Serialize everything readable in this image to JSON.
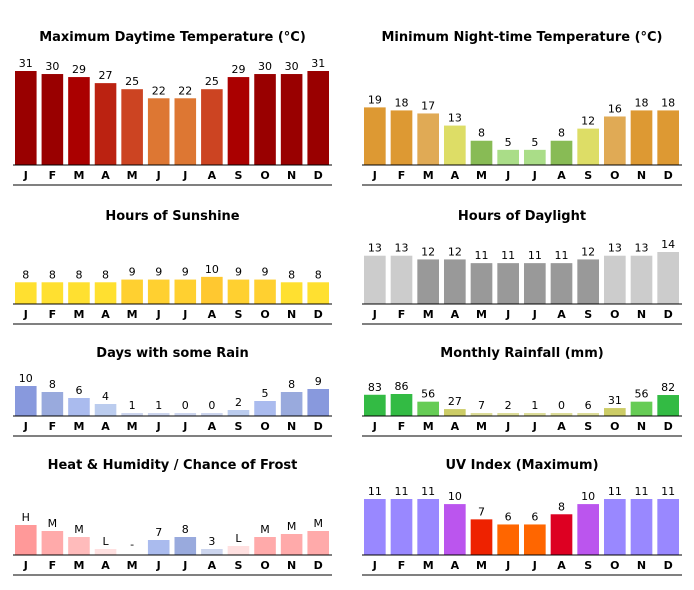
{
  "chart_data": [
    {
      "type": "bar",
      "title": "Maximum Daytime Temperature (°C)",
      "categories": [
        "J",
        "F",
        "M",
        "A",
        "M",
        "J",
        "J",
        "A",
        "S",
        "O",
        "N",
        "D"
      ],
      "values": [
        31,
        30,
        29,
        27,
        25,
        22,
        22,
        25,
        29,
        30,
        30,
        31
      ],
      "labels": [
        "31",
        "30",
        "29",
        "27",
        "25",
        "22",
        "22",
        "25",
        "29",
        "30",
        "30",
        "31"
      ],
      "colors": [
        "#990000",
        "#990000",
        "#AA0000",
        "#BB2211",
        "#CC4422",
        "#DD7733",
        "#DD7733",
        "#CC4422",
        "#AA0000",
        "#990000",
        "#990000",
        "#990000"
      ],
      "ylim": [
        0,
        31
      ]
    },
    {
      "type": "bar",
      "title": "Minimum Night-time Temperature (°C)",
      "categories": [
        "J",
        "F",
        "M",
        "A",
        "M",
        "J",
        "J",
        "A",
        "S",
        "O",
        "N",
        "D"
      ],
      "values": [
        19,
        18,
        17,
        13,
        8,
        5,
        5,
        8,
        12,
        16,
        18,
        18
      ],
      "labels": [
        "19",
        "18",
        "17",
        "13",
        "8",
        "5",
        "5",
        "8",
        "12",
        "16",
        "18",
        "18"
      ],
      "colors": [
        "#DD9933",
        "#DD9933",
        "#E0AA55",
        "#DDDD66",
        "#88BB55",
        "#AADD88",
        "#AADD88",
        "#88BB55",
        "#DDDD66",
        "#E0AA55",
        "#DD9933",
        "#DD9933"
      ],
      "ylim": [
        0,
        31
      ]
    },
    {
      "type": "bar",
      "title": "Hours of Sunshine",
      "categories": [
        "J",
        "F",
        "M",
        "A",
        "M",
        "J",
        "J",
        "A",
        "S",
        "O",
        "N",
        "D"
      ],
      "values": [
        8,
        8,
        8,
        8,
        9,
        9,
        9,
        10,
        9,
        9,
        8,
        8
      ],
      "labels": [
        "8",
        "8",
        "8",
        "8",
        "9",
        "9",
        "9",
        "10",
        "9",
        "9",
        "8",
        "8"
      ],
      "colors": [
        "#FFE030",
        "#FFE030",
        "#FFE030",
        "#FFE030",
        "#FFD030",
        "#FFD030",
        "#FFD030",
        "#FFC830",
        "#FFD030",
        "#FFD030",
        "#FFE030",
        "#FFE030"
      ],
      "ylim": [
        0,
        14
      ]
    },
    {
      "type": "bar",
      "title": "Hours of Daylight",
      "categories": [
        "J",
        "F",
        "M",
        "A",
        "M",
        "J",
        "J",
        "A",
        "S",
        "O",
        "N",
        "D"
      ],
      "values": [
        13,
        13,
        12,
        12,
        11,
        11,
        11,
        11,
        12,
        13,
        13,
        14
      ],
      "labels": [
        "13",
        "13",
        "12",
        "12",
        "11",
        "11",
        "11",
        "11",
        "12",
        "13",
        "13",
        "14"
      ],
      "colors": [
        "#CCCCCC",
        "#CCCCCC",
        "#999999",
        "#999999",
        "#999999",
        "#999999",
        "#999999",
        "#999999",
        "#999999",
        "#CCCCCC",
        "#CCCCCC",
        "#CCCCCC"
      ],
      "ylim": [
        0,
        14
      ]
    },
    {
      "type": "bar",
      "title": "Days with some Rain",
      "categories": [
        "J",
        "F",
        "M",
        "A",
        "M",
        "J",
        "J",
        "A",
        "S",
        "O",
        "N",
        "D"
      ],
      "values": [
        10,
        8,
        6,
        4,
        1,
        1,
        0,
        0,
        2,
        5,
        8,
        9
      ],
      "labels": [
        "10",
        "8",
        "6",
        "4",
        "1",
        "1",
        "0",
        "0",
        "2",
        "5",
        "8",
        "9"
      ],
      "colors": [
        "#8899DD",
        "#99AADD",
        "#AABBEE",
        "#BBCCEE",
        "#CCD5EE",
        "#CCD5EE",
        "#CCD5EE",
        "#CCD5EE",
        "#BBCCEE",
        "#AABBEE",
        "#99AADD",
        "#8899DD"
      ],
      "ylim": [
        0,
        10
      ]
    },
    {
      "type": "bar",
      "title": "Monthly Rainfall (mm)",
      "categories": [
        "J",
        "F",
        "M",
        "A",
        "M",
        "J",
        "J",
        "A",
        "S",
        "O",
        "N",
        "D"
      ],
      "values": [
        83,
        86,
        56,
        27,
        7,
        2,
        1,
        0,
        6,
        31,
        56,
        82
      ],
      "labels": [
        "83",
        "86",
        "56",
        "27",
        "7",
        "2",
        "1",
        "0",
        "6",
        "31",
        "56",
        "82"
      ],
      "colors": [
        "#33BB44",
        "#33BB44",
        "#66CC55",
        "#CCCC66",
        "#DDDD99",
        "#DDDD99",
        "#DDDD99",
        "#DDDD99",
        "#DDDD99",
        "#CCCC66",
        "#66CC55",
        "#33BB44"
      ],
      "ylim": [
        0,
        86
      ]
    },
    {
      "type": "bar",
      "title": "Heat & Humidity / Chance of Frost",
      "categories": [
        "J",
        "F",
        "M",
        "A",
        "M",
        "J",
        "J",
        "A",
        "S",
        "O",
        "N",
        "D"
      ],
      "values": [
        10,
        8,
        6,
        2,
        0,
        5,
        6,
        2,
        3,
        6,
        7,
        8
      ],
      "labels": [
        "H",
        "M",
        "M",
        "L",
        "-",
        "7",
        "8",
        "3",
        "L",
        "M",
        "M",
        "M"
      ],
      "colors": [
        "#FF9999",
        "#FFAAAA",
        "#FFBBBB",
        "#FFE0E0",
        "#FFFFFF",
        "#AABBEE",
        "#99AADD",
        "#CCD5EE",
        "#FFE0E0",
        "#FFAAAA",
        "#FFAAAA",
        "#FFAAAA"
      ],
      "ylim": [
        0,
        10
      ]
    },
    {
      "type": "bar",
      "title": "UV Index (Maximum)",
      "categories": [
        "J",
        "F",
        "M",
        "A",
        "M",
        "J",
        "J",
        "A",
        "S",
        "O",
        "N",
        "D"
      ],
      "values": [
        11,
        11,
        11,
        10,
        7,
        6,
        6,
        8,
        10,
        11,
        11,
        11
      ],
      "labels": [
        "11",
        "11",
        "11",
        "10",
        "7",
        "6",
        "6",
        "8",
        "10",
        "11",
        "11",
        "11"
      ],
      "colors": [
        "#9988FF",
        "#9988FF",
        "#9988FF",
        "#BB55EE",
        "#EE2200",
        "#FF6600",
        "#FF6600",
        "#DD0022",
        "#BB55EE",
        "#9988FF",
        "#9988FF",
        "#9988FF"
      ],
      "ylim": [
        0,
        11
      ]
    }
  ]
}
